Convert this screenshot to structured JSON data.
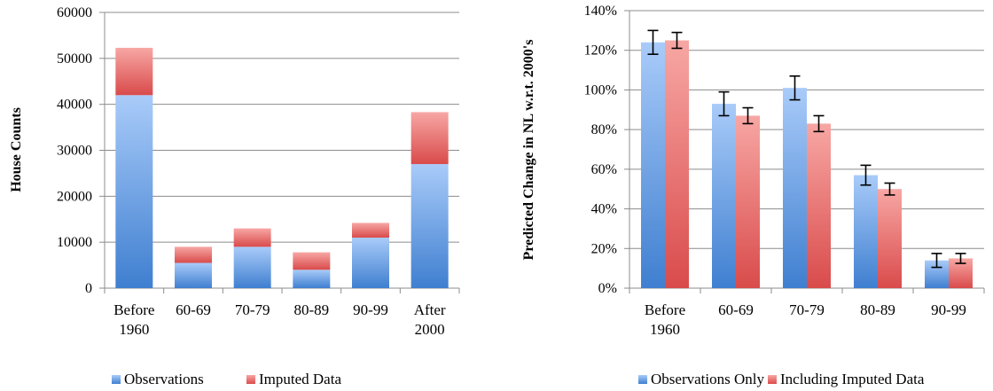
{
  "chart_data": [
    {
      "type": "bar",
      "stacked": true,
      "ylabel": "House Counts",
      "ylim": [
        0,
        60000
      ],
      "yticks": [
        0,
        10000,
        20000,
        30000,
        40000,
        50000,
        60000
      ],
      "ytick_labels": [
        "0",
        "10000",
        "20000",
        "30000",
        "40000",
        "50000",
        "60000"
      ],
      "categories": [
        [
          "Before",
          "1960"
        ],
        [
          "60-69"
        ],
        [
          "70-79"
        ],
        [
          "80-89"
        ],
        [
          "90-99"
        ],
        [
          "After",
          "2000"
        ]
      ],
      "grid": true,
      "legend_position": "bottom",
      "series": [
        {
          "name": "Observations",
          "values": [
            42000,
            5500,
            9000,
            4000,
            11000,
            27000
          ],
          "color": "#4a86d4"
        },
        {
          "name": "Imputed Data",
          "values": [
            10300,
            3500,
            4000,
            3800,
            3200,
            11300
          ],
          "color": "#e06262"
        }
      ]
    },
    {
      "type": "bar",
      "stacked": false,
      "ylabel": "Predicted Change in NL w.r.t. 2000's",
      "ylim": [
        0,
        140
      ],
      "yticks": [
        0,
        20,
        40,
        60,
        80,
        100,
        120,
        140
      ],
      "ytick_labels": [
        "0%",
        "20%",
        "40%",
        "60%",
        "80%",
        "100%",
        "120%",
        "140%"
      ],
      "categories": [
        [
          "Before",
          "1960"
        ],
        [
          "60-69"
        ],
        [
          "70-79"
        ],
        [
          "80-89"
        ],
        [
          "90-99"
        ]
      ],
      "grid": true,
      "legend_position": "bottom",
      "series": [
        {
          "name": "Observations Only",
          "values": [
            124,
            93,
            101,
            57,
            14
          ],
          "errors": [
            6,
            6,
            6,
            5,
            3.5
          ],
          "color": "#4a86d4"
        },
        {
          "name": "Including Imputed Data",
          "values": [
            125,
            87,
            83,
            50,
            15
          ],
          "errors": [
            4,
            4,
            4,
            3,
            2.5
          ],
          "color": "#e06262"
        }
      ]
    }
  ]
}
